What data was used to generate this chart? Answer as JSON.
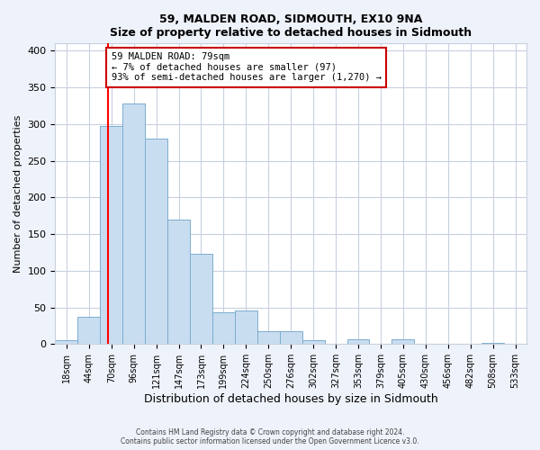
{
  "title": "59, MALDEN ROAD, SIDMOUTH, EX10 9NA",
  "subtitle": "Size of property relative to detached houses in Sidmouth",
  "xlabel": "Distribution of detached houses by size in Sidmouth",
  "ylabel": "Number of detached properties",
  "bin_labels": [
    "18sqm",
    "44sqm",
    "70sqm",
    "96sqm",
    "121sqm",
    "147sqm",
    "173sqm",
    "199sqm",
    "224sqm",
    "250sqm",
    "276sqm",
    "302sqm",
    "327sqm",
    "353sqm",
    "379sqm",
    "405sqm",
    "430sqm",
    "456sqm",
    "482sqm",
    "508sqm",
    "533sqm"
  ],
  "bar_heights": [
    5,
    37,
    297,
    328,
    280,
    170,
    123,
    43,
    46,
    17,
    18,
    5,
    0,
    6,
    0,
    6,
    0,
    0,
    0,
    2,
    0
  ],
  "bar_color": "#c9ddf0",
  "bar_edge_color": "#7aadcf",
  "property_line_color": "#ff0000",
  "annotation_text": "59 MALDEN ROAD: 79sqm\n← 7% of detached houses are smaller (97)\n93% of semi-detached houses are larger (1,270) →",
  "annotation_box_color": "#ffffff",
  "annotation_box_edge_color": "#cc0000",
  "ylim": [
    0,
    410
  ],
  "yticks": [
    0,
    50,
    100,
    150,
    200,
    250,
    300,
    350,
    400
  ],
  "footnote1": "Contains HM Land Registry data © Crown copyright and database right 2024.",
  "footnote2": "Contains public sector information licensed under the Open Government Licence v3.0.",
  "background_color": "#eef2fa",
  "plot_background_color": "#ffffff",
  "grid_color": "#c8d0e0"
}
